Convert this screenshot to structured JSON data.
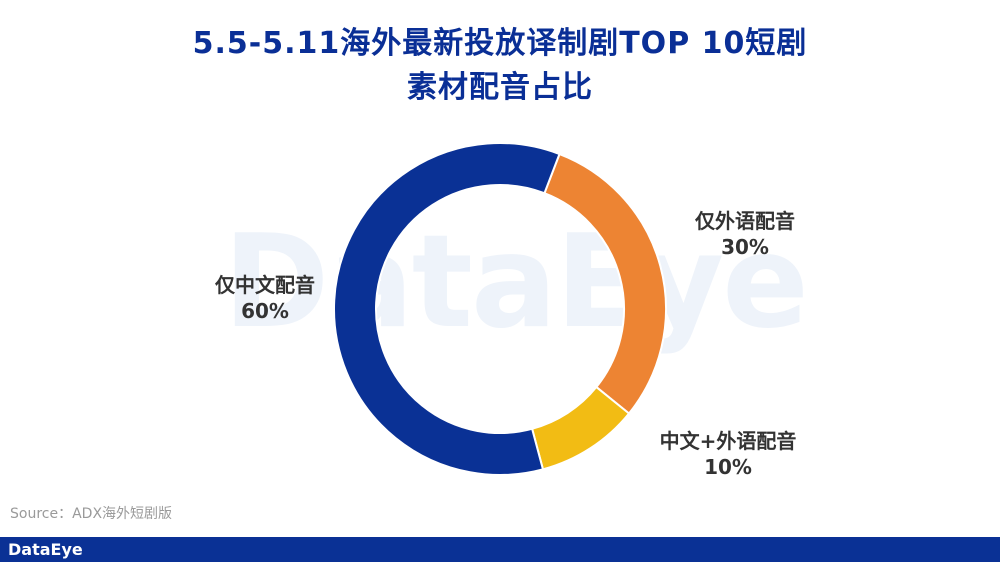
{
  "header": {
    "title_line1": "5.5-5.11海外最新投放译制剧TOP 10短剧",
    "title_line2": "素材配音占比"
  },
  "watermark": "DataEye",
  "chart_data": {
    "type": "pie",
    "variant": "donut",
    "title": "5.5-5.11海外最新投放译制剧TOP 10短剧素材配音占比",
    "slices": [
      {
        "label": "仅外语配音",
        "value": 30,
        "value_label": "30%",
        "color": "#ed8433"
      },
      {
        "label": "中文+外语配音",
        "value": 10,
        "value_label": "10%",
        "color": "#f2bc14"
      },
      {
        "label": "仅中文配音",
        "value": 60,
        "value_label": "60%",
        "color": "#0a3195"
      }
    ],
    "legend": "none"
  },
  "source": "Source：ADX海外短剧版",
  "footer": {
    "brand": "DataEye",
    "bar_color": "#0a3195"
  }
}
